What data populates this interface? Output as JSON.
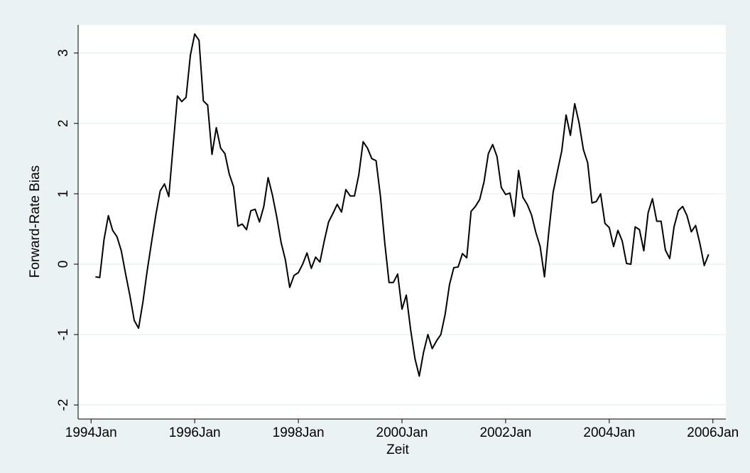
{
  "chart_data": {
    "type": "line",
    "x_label": "Zeit",
    "y_label": "Forward-Rate Bias",
    "color": "#000000",
    "grid": true,
    "xlim": [
      "1993-10",
      "2006-04"
    ],
    "xticks": [
      {
        "value": "1994-01",
        "label": "1994Jan"
      },
      {
        "value": "1996-01",
        "label": "1996Jan"
      },
      {
        "value": "1998-01",
        "label": "1998Jan"
      },
      {
        "value": "2000-01",
        "label": "2000Jan"
      },
      {
        "value": "2002-01",
        "label": "2002Jan"
      },
      {
        "value": "2004-01",
        "label": "2004Jan"
      },
      {
        "value": "2006-01",
        "label": "2006Jan"
      }
    ],
    "ylim": [
      -2.2,
      3.4
    ],
    "yticks": [
      -2,
      -1,
      0,
      1,
      2,
      3
    ],
    "x": [
      "1994-02",
      "1994-03",
      "1994-04",
      "1994-05",
      "1994-06",
      "1994-07",
      "1994-08",
      "1994-09",
      "1994-10",
      "1994-11",
      "1994-12",
      "1995-01",
      "1995-02",
      "1995-03",
      "1995-04",
      "1995-05",
      "1995-06",
      "1995-07",
      "1995-08",
      "1995-09",
      "1995-10",
      "1995-11",
      "1995-12",
      "1996-01",
      "1996-02",
      "1996-03",
      "1996-04",
      "1996-05",
      "1996-06",
      "1996-07",
      "1996-08",
      "1996-09",
      "1996-10",
      "1996-11",
      "1996-12",
      "1997-01",
      "1997-02",
      "1997-03",
      "1997-04",
      "1997-05",
      "1997-06",
      "1997-07",
      "1997-08",
      "1997-09",
      "1997-10",
      "1997-11",
      "1997-12",
      "1998-01",
      "1998-02",
      "1998-03",
      "1998-04",
      "1998-05",
      "1998-06",
      "1998-07",
      "1998-08",
      "1998-09",
      "1998-10",
      "1998-11",
      "1998-12",
      "1999-01",
      "1999-02",
      "1999-03",
      "1999-04",
      "1999-05",
      "1999-06",
      "1999-07",
      "1999-08",
      "1999-09",
      "1999-10",
      "1999-11",
      "1999-12",
      "2000-01",
      "2000-02",
      "2000-03",
      "2000-04",
      "2000-05",
      "2000-06",
      "2000-07",
      "2000-08",
      "2000-09",
      "2000-10",
      "2000-11",
      "2000-12",
      "2001-01",
      "2001-02",
      "2001-03",
      "2001-04",
      "2001-05",
      "2001-06",
      "2001-07",
      "2001-08",
      "2001-09",
      "2001-10",
      "2001-11",
      "2001-12",
      "2002-01",
      "2002-02",
      "2002-03",
      "2002-04",
      "2002-05",
      "2002-06",
      "2002-07",
      "2002-08",
      "2002-09",
      "2002-10",
      "2002-11",
      "2002-12",
      "2003-01",
      "2003-02",
      "2003-03",
      "2003-04",
      "2003-05",
      "2003-06",
      "2003-07",
      "2003-08",
      "2003-09",
      "2003-10",
      "2003-11",
      "2003-12",
      "2004-01",
      "2004-02",
      "2004-03",
      "2004-04",
      "2004-05",
      "2004-06",
      "2004-07",
      "2004-08",
      "2004-09",
      "2004-10",
      "2004-11",
      "2004-12",
      "2005-01",
      "2005-02",
      "2005-03",
      "2005-04",
      "2005-05",
      "2005-06",
      "2005-07",
      "2005-08",
      "2005-09",
      "2005-10",
      "2005-11",
      "2005-12"
    ],
    "values": [
      -0.18,
      -0.19,
      0.35,
      0.69,
      0.48,
      0.39,
      0.19,
      -0.14,
      -0.45,
      -0.8,
      -0.91,
      -0.54,
      -0.09,
      0.31,
      0.7,
      1.04,
      1.14,
      0.96,
      1.68,
      2.39,
      2.31,
      2.37,
      2.97,
      3.27,
      3.18,
      2.32,
      2.26,
      1.56,
      1.94,
      1.65,
      1.57,
      1.28,
      1.1,
      0.54,
      0.57,
      0.49,
      0.76,
      0.78,
      0.6,
      0.82,
      1.23,
      0.98,
      0.67,
      0.31,
      0.06,
      -0.33,
      -0.16,
      -0.12,
      0.0,
      0.16,
      -0.06,
      0.1,
      0.03,
      0.33,
      0.6,
      0.72,
      0.85,
      0.74,
      1.06,
      0.97,
      0.97,
      1.27,
      1.74,
      1.65,
      1.5,
      1.47,
      0.97,
      0.31,
      -0.26,
      -0.26,
      -0.14,
      -0.64,
      -0.44,
      -0.93,
      -1.34,
      -1.59,
      -1.25,
      -1.0,
      -1.2,
      -1.09,
      -1.0,
      -0.71,
      -0.29,
      -0.05,
      -0.04,
      0.15,
      0.09,
      0.75,
      0.82,
      0.92,
      1.17,
      1.57,
      1.7,
      1.53,
      1.09,
      0.99,
      1.01,
      0.68,
      1.33,
      0.95,
      0.85,
      0.7,
      0.45,
      0.25,
      -0.18,
      0.46,
      1.02,
      1.32,
      1.61,
      2.12,
      1.83,
      2.28,
      2.01,
      1.63,
      1.44,
      0.87,
      0.89,
      1.0,
      0.58,
      0.52,
      0.25,
      0.48,
      0.33,
      0.01,
      0.0,
      0.53,
      0.49,
      0.19,
      0.73,
      0.93,
      0.61,
      0.61,
      0.2,
      0.08,
      0.53,
      0.76,
      0.82,
      0.69,
      0.46,
      0.55,
      0.29,
      -0.02,
      0.14
    ]
  }
}
